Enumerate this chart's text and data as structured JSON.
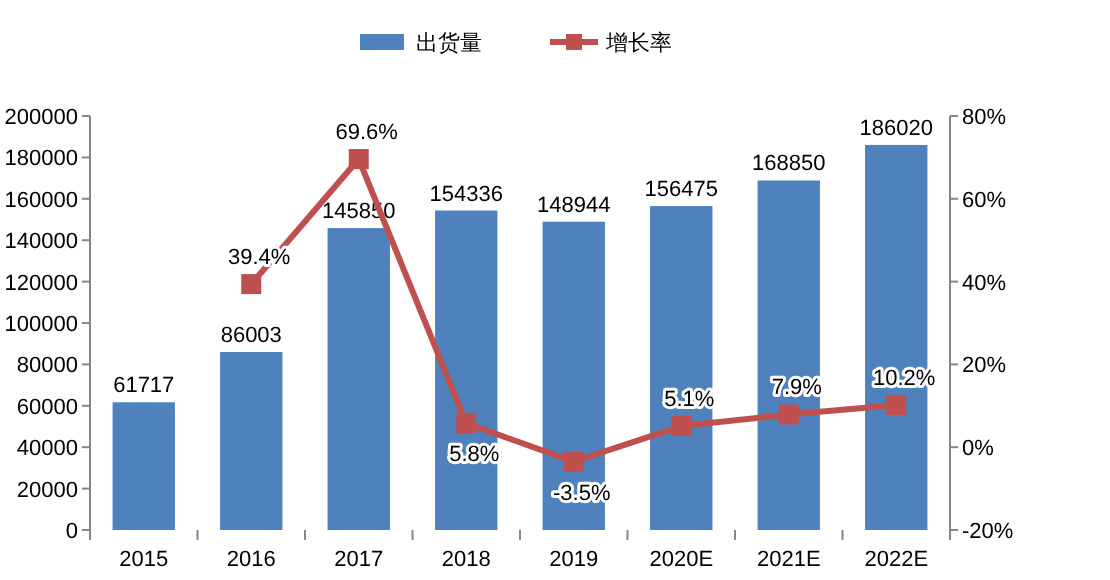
{
  "chart_data": {
    "type": "bar",
    "categories": [
      "2015",
      "2016",
      "2017",
      "2018",
      "2019",
      "2020E",
      "2021E",
      "2022E"
    ],
    "series": [
      {
        "name": "出货量",
        "color": "#4f81bd",
        "values": [
          61717,
          86003,
          145850,
          154336,
          148944,
          156475,
          168850,
          186020
        ],
        "value_labels": [
          "61717",
          "86003",
          "145850",
          "154336",
          "148944",
          "156475",
          "168850",
          "186020"
        ]
      },
      {
        "name": "增长率",
        "type": "line",
        "axis": "y2",
        "color": "#c0504d",
        "marker": "square",
        "values": [
          null,
          39.4,
          69.6,
          5.8,
          -3.5,
          5.1,
          7.9,
          10.2
        ],
        "value_labels": [
          null,
          "39.4%",
          "69.6%",
          "5.8%",
          "-3.5%",
          "5.1%",
          "7.9%",
          "10.2%"
        ]
      }
    ],
    "ylim": [
      0,
      200000
    ],
    "yticks": [
      0,
      20000,
      40000,
      60000,
      80000,
      100000,
      120000,
      140000,
      160000,
      180000,
      200000
    ],
    "y2lim": [
      -20,
      80
    ],
    "y2ticks": [
      {
        "value": -20,
        "label": "-20%"
      },
      {
        "value": 0,
        "label": "0%"
      },
      {
        "value": 20,
        "label": "20%"
      },
      {
        "value": 40,
        "label": "40%"
      },
      {
        "value": 60,
        "label": "60%"
      },
      {
        "value": 80,
        "label": "80%"
      }
    ],
    "legend": "top",
    "grid": false
  }
}
